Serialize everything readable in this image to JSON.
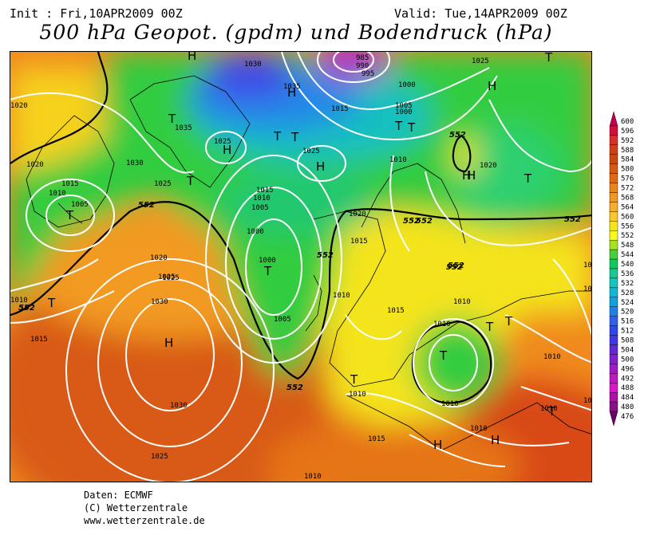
{
  "header": {
    "init": "Init : Fri,10APR2009 00Z",
    "valid": "Valid: Tue,14APR2009 00Z",
    "title": "500 hPa Geopot. (gpdm) und Bodendruck (hPa)"
  },
  "footer": {
    "source": "Daten: ECMWF",
    "copyright": "(C) Wetterzentrale",
    "url": "www.wetterzentrale.de"
  },
  "colors": {
    "contour": "#ffffff",
    "coast": "#000000",
    "geopot_552_line": "#000000"
  },
  "legend": {
    "values": [
      "600",
      "596",
      "592",
      "588",
      "584",
      "580",
      "576",
      "572",
      "568",
      "564",
      "560",
      "556",
      "552",
      "548",
      "544",
      "540",
      "536",
      "532",
      "528",
      "524",
      "520",
      "516",
      "512",
      "508",
      "504",
      "500",
      "496",
      "492",
      "488",
      "484",
      "480",
      "476"
    ],
    "colors": [
      "#c0004a",
      "#d0103a",
      "#d82f2a",
      "#d04018",
      "#c84810",
      "#d85a10",
      "#e06a10",
      "#e8841a",
      "#ee9a20",
      "#f4b028",
      "#f8c82c",
      "#f4e61a",
      "#f8f820",
      "#a8e21c",
      "#48d038",
      "#10c860",
      "#18c890",
      "#10c8c0",
      "#10b8d8",
      "#10a0e0",
      "#2080e8",
      "#3060f0",
      "#3048f0",
      "#4038e8",
      "#6028d8",
      "#8020d0",
      "#a018c8",
      "#c018c0",
      "#d818c8",
      "#b010a8",
      "#8a1088",
      "#6a0070"
    ]
  },
  "map": {
    "geopot_labels": [
      "552",
      "552",
      "552",
      "552",
      "552",
      "552",
      "552",
      "552",
      "552",
      "552"
    ],
    "pressure_labels": [
      "1030",
      "1035",
      "1025",
      "1000",
      "995",
      "985",
      "990",
      "1025",
      "1005",
      "1000",
      "1010",
      "1020",
      "1015",
      "1030",
      "1035",
      "1025",
      "1025",
      "1020",
      "1020",
      "1025",
      "1010",
      "1015",
      "1005",
      "1015",
      "1010",
      "1005",
      "1000",
      "1000",
      "1020",
      "1015",
      "1010",
      "1005",
      "1010",
      "1015",
      "1010",
      "1010",
      "1020",
      "1025",
      "1030",
      "1015",
      "1010",
      "1030",
      "1025",
      "1010",
      "1010",
      "1015",
      "1010",
      "1010",
      "1010",
      "1020",
      "1010",
      "1010"
    ],
    "symbols": [
      "H",
      "H",
      "T",
      "H",
      "T",
      "T",
      "T",
      "H",
      "H",
      "T",
      "T",
      "T",
      "T",
      "H",
      "T",
      "H",
      "T",
      "T",
      "T",
      "T",
      "T",
      "H",
      "H",
      "H",
      "T",
      "T"
    ]
  }
}
